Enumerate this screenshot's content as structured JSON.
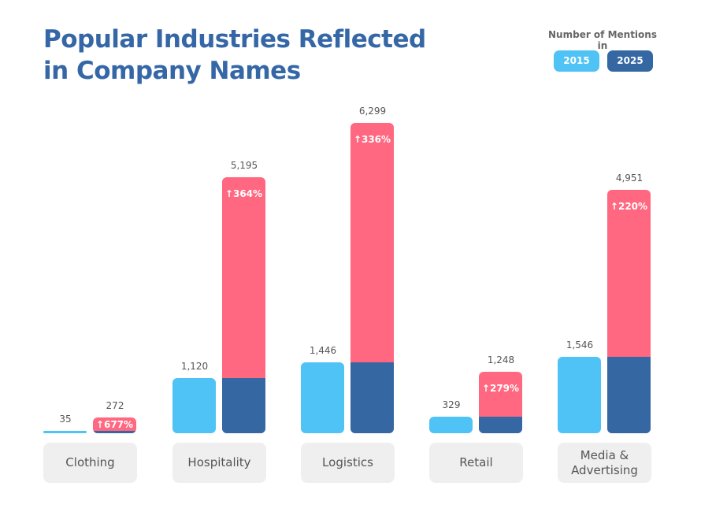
{
  "chart_data": {
    "type": "bar",
    "title": "Popular Industries Reflected\nin Company Names",
    "legend_title": "Number of Mentions in",
    "legend_placement": "top-right",
    "categories": [
      "Clothing",
      "Hospitality",
      "Logistics",
      "Retail",
      "Media &\nAdvertising"
    ],
    "series": [
      {
        "name": "2015",
        "color": "#4fc3f5",
        "values": [
          35,
          1120,
          1446,
          329,
          1546
        ],
        "labels": [
          "35",
          "1,120",
          "1,446",
          "329",
          "1,546"
        ]
      },
      {
        "name": "2025",
        "color": "#3567a3",
        "growth_color": "#ff6880",
        "values": [
          272,
          5195,
          6299,
          1248,
          4951
        ],
        "labels": [
          "272",
          "5,195",
          "6,299",
          "1,248",
          "4,951"
        ]
      }
    ],
    "growth_labels": [
      "677%",
      "364%",
      "336%",
      "279%",
      "220%"
    ],
    "growth_icon": "arrow-up-icon",
    "grid": false
  }
}
